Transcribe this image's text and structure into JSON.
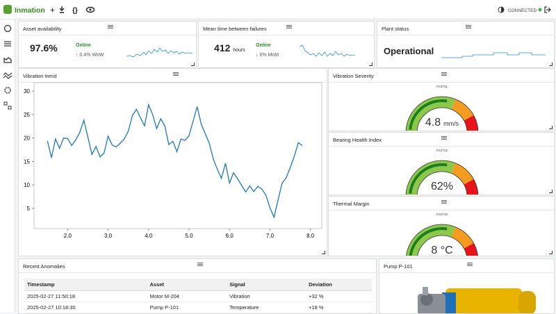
{
  "header": {
    "brand": "Inmation",
    "status": "CONNECTED"
  },
  "kpis": [
    {
      "title": "Asset availability",
      "value": "97.6%",
      "status": "Online",
      "delta": "0.4% WoW"
    },
    {
      "title": "Mean time between failures",
      "value": "412",
      "unit": "hours",
      "status": "Online",
      "delta": "6% MoM"
    },
    {
      "title": "Plant status",
      "value": "Operational"
    }
  ],
  "chart_data": {
    "type": "line",
    "title": "Vibration trend",
    "x": [
      1.5,
      1.6,
      1.7,
      1.8,
      1.9,
      2.0,
      2.1,
      2.2,
      2.3,
      2.4,
      2.5,
      2.6,
      2.7,
      2.8,
      2.9,
      3.0,
      3.1,
      3.2,
      3.3,
      3.4,
      3.5,
      3.6,
      3.7,
      3.8,
      3.9,
      4.0,
      4.1,
      4.2,
      4.3,
      4.4,
      4.5,
      4.6,
      4.7,
      4.8,
      4.9,
      5.0,
      5.1,
      5.2,
      5.3,
      5.4,
      5.5,
      5.6,
      5.7,
      5.8,
      5.9,
      6.0,
      6.1,
      6.2,
      6.3,
      6.4,
      6.5,
      6.6,
      6.7,
      6.8,
      6.9,
      7.0,
      7.1,
      7.2,
      7.3,
      7.4,
      7.5,
      7.6,
      7.7,
      7.8
    ],
    "series": [
      {
        "name": "Vibration",
        "color": "#1f77b4",
        "values": [
          19.4,
          15.8,
          19.8,
          17.8,
          20,
          19.9,
          18.4,
          19.6,
          21.2,
          23.8,
          20.2,
          16.5,
          18.2,
          16,
          16.8,
          20.4,
          18.5,
          18.1,
          18.9,
          19.8,
          21.5,
          24.8,
          26.1,
          24.3,
          22.6,
          27.1,
          25,
          22,
          24.1,
          22.6,
          18.6,
          19.3,
          17.1,
          19.8,
          19.5,
          20.5,
          23.6,
          26.7,
          23,
          20.9,
          18.9,
          15.5,
          13.3,
          11.4,
          14.6,
          10.4,
          12.6,
          11.3,
          9.9,
          8.5,
          9.8,
          8.6,
          9.7,
          9.1,
          7.8,
          5.1,
          3.1,
          6.8,
          10.4,
          11.5,
          13.7,
          16.1,
          19,
          18.4
        ]
      }
    ],
    "xlim": [
      1.17,
      8.28
    ],
    "ylim": [
      0.7,
      31.8
    ],
    "xticks": [
      {
        "value": 2,
        "label": "2.0"
      },
      {
        "value": 3,
        "label": "3.0"
      },
      {
        "value": 4,
        "label": "4.0"
      },
      {
        "value": 5,
        "label": "5.0"
      },
      {
        "value": 6,
        "label": "6.0"
      },
      {
        "value": 7,
        "label": "7.0"
      },
      {
        "value": 8,
        "label": "8.0"
      }
    ],
    "yticks": [
      5,
      10,
      15,
      20,
      25,
      30
    ]
  },
  "gauges": [
    {
      "title": "Vibration Severity",
      "tag": "FC4711",
      "value": "4.8",
      "unit": "mm/s"
    },
    {
      "title": "Bearing Health Index",
      "tag": "FC4712",
      "value": "62%"
    },
    {
      "title": "Thermal Margin",
      "tag": "FC4713",
      "value": "8 °C"
    }
  ],
  "table": {
    "title": "Recent Anomalies",
    "columns": [
      "Timestamp",
      "Asset",
      "Signal",
      "Deviation"
    ],
    "rows": [
      [
        "2025-02-27 11:50:18",
        "Motor M-204",
        "Vibration",
        "+32 %"
      ],
      [
        "2025-02-27 10:18:30",
        "Pump P-101",
        "Temperature",
        "+18 %"
      ]
    ]
  },
  "pump": {
    "title": "Pump P-101"
  }
}
